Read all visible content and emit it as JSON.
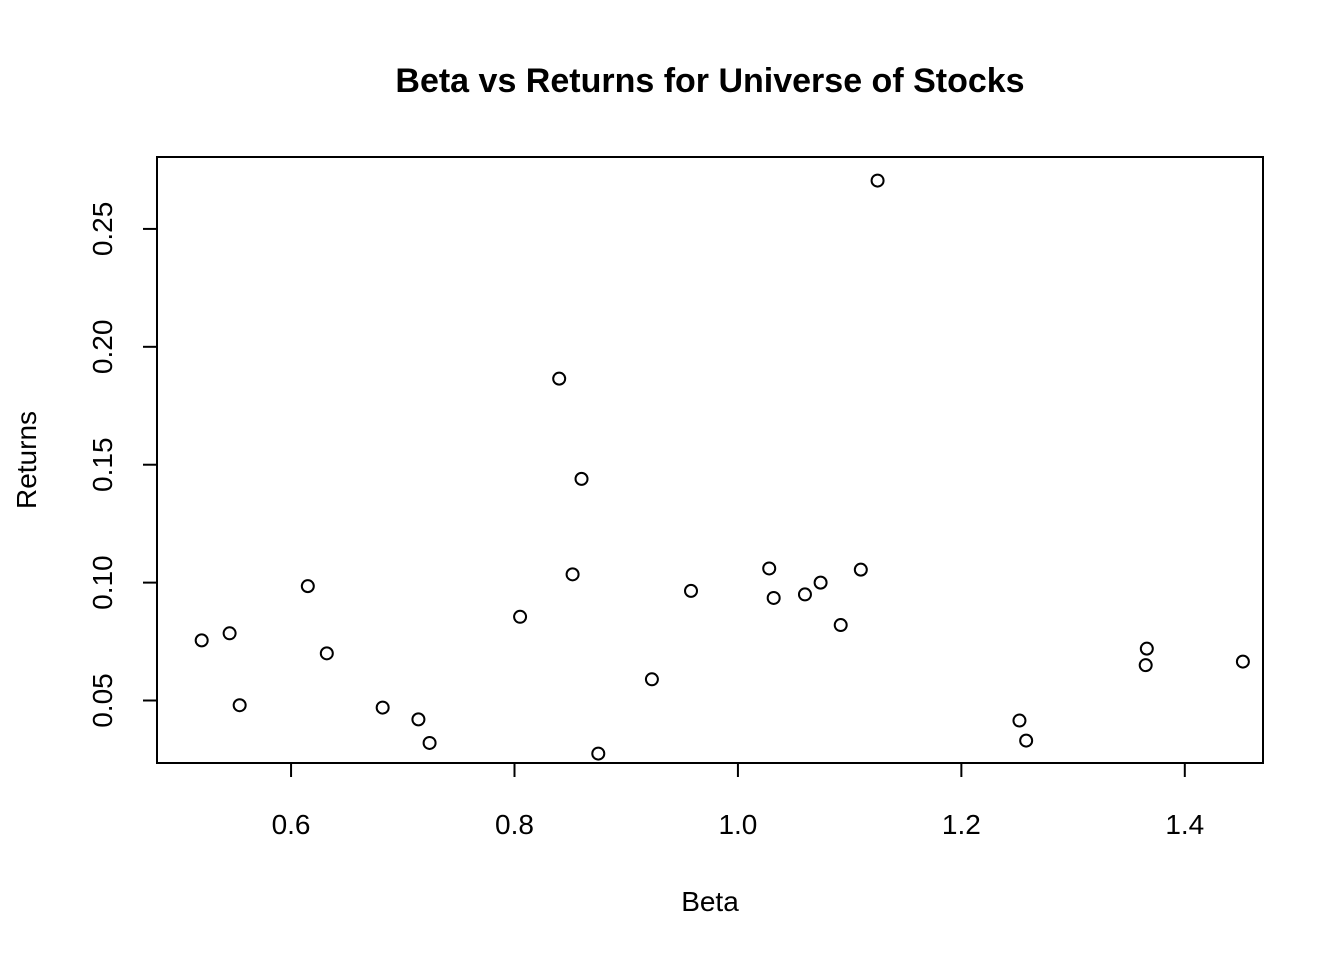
{
  "chart_data": {
    "type": "scatter",
    "title": "Beta vs Returns for Universe of Stocks",
    "xlabel": "Beta",
    "ylabel": "Returns",
    "xlim": [
      0.48,
      1.47
    ],
    "ylim": [
      0.0235,
      0.2805
    ],
    "xticks": [
      0.6,
      0.8,
      1.0,
      1.2,
      1.4
    ],
    "xtick_labels": [
      "0.6",
      "0.8",
      "1.0",
      "1.2",
      "1.4"
    ],
    "yticks": [
      0.05,
      0.1,
      0.15,
      0.2,
      0.25
    ],
    "ytick_labels": [
      "0.05",
      "0.10",
      "0.15",
      "0.20",
      "0.25"
    ],
    "grid": false,
    "marker": "open-circle",
    "points": [
      {
        "x": 0.52,
        "y": 0.0755
      },
      {
        "x": 0.545,
        "y": 0.0785
      },
      {
        "x": 0.554,
        "y": 0.048
      },
      {
        "x": 0.615,
        "y": 0.0985
      },
      {
        "x": 0.632,
        "y": 0.07
      },
      {
        "x": 0.682,
        "y": 0.047
      },
      {
        "x": 0.714,
        "y": 0.042
      },
      {
        "x": 0.724,
        "y": 0.032
      },
      {
        "x": 0.805,
        "y": 0.0855
      },
      {
        "x": 0.84,
        "y": 0.1865
      },
      {
        "x": 0.852,
        "y": 0.1035
      },
      {
        "x": 0.86,
        "y": 0.144
      },
      {
        "x": 0.875,
        "y": 0.0275
      },
      {
        "x": 0.923,
        "y": 0.059
      },
      {
        "x": 0.958,
        "y": 0.0965
      },
      {
        "x": 1.028,
        "y": 0.106
      },
      {
        "x": 1.032,
        "y": 0.0935
      },
      {
        "x": 1.06,
        "y": 0.095
      },
      {
        "x": 1.074,
        "y": 0.1
      },
      {
        "x": 1.092,
        "y": 0.082
      },
      {
        "x": 1.11,
        "y": 0.1055
      },
      {
        "x": 1.125,
        "y": 0.2705
      },
      {
        "x": 1.252,
        "y": 0.0415
      },
      {
        "x": 1.258,
        "y": 0.033
      },
      {
        "x": 1.366,
        "y": 0.072
      },
      {
        "x": 1.365,
        "y": 0.065
      },
      {
        "x": 1.452,
        "y": 0.0665
      }
    ]
  }
}
